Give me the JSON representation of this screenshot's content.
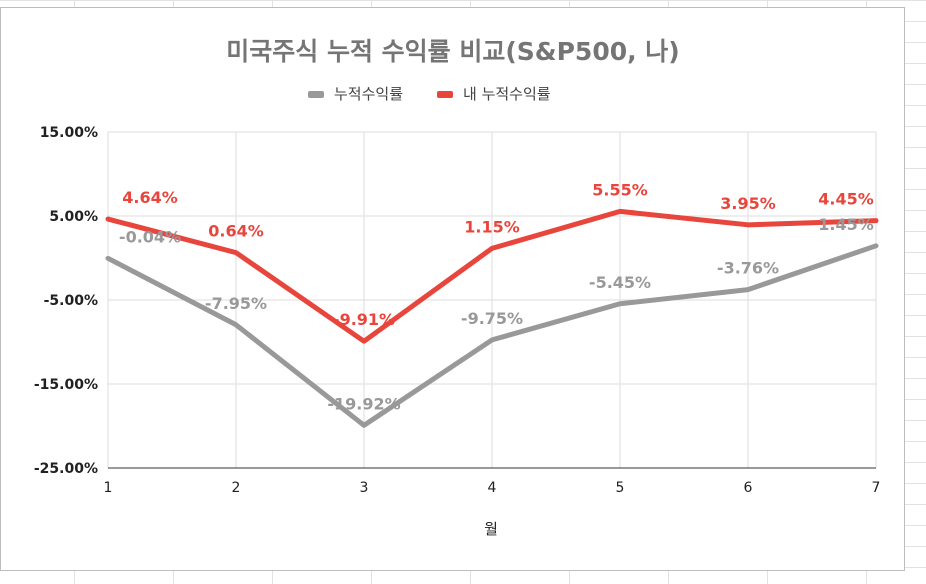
{
  "chart_data": {
    "type": "line",
    "title": "미국주식 누적 수익률 비교(S&P500, 나)",
    "xlabel": "월",
    "ylabel": "",
    "x": [
      1,
      2,
      3,
      4,
      5,
      6,
      7
    ],
    "x_tick_labels": [
      "1",
      "2",
      "3",
      "4",
      "5",
      "6",
      "7"
    ],
    "ylim": [
      -25,
      15
    ],
    "y_tick_labels": [
      "15.00%",
      "5.00%",
      "-5.00%",
      "-15.00%",
      "-25.00%"
    ],
    "y_ticks": [
      15,
      5,
      -5,
      -15,
      -25
    ],
    "grid": true,
    "legend_position": "top",
    "series": [
      {
        "name": "누적수익률",
        "color": "#999999",
        "values": [
          -0.04,
          -7.95,
          -19.92,
          -9.75,
          -5.45,
          -3.76,
          1.45
        ],
        "labels": [
          "-0.04%",
          "-7.95%",
          "-19.92%",
          "-9.75%",
          "-5.45%",
          "-3.76%",
          "1.45%"
        ]
      },
      {
        "name": "내 누적수익률",
        "color": "#e8453c",
        "values": [
          4.64,
          0.64,
          -9.91,
          1.15,
          5.55,
          3.95,
          4.45
        ],
        "labels": [
          "4.64%",
          "0.64%",
          "-9.91%",
          "1.15%",
          "5.55%",
          "3.95%",
          "4.45%"
        ]
      }
    ]
  }
}
